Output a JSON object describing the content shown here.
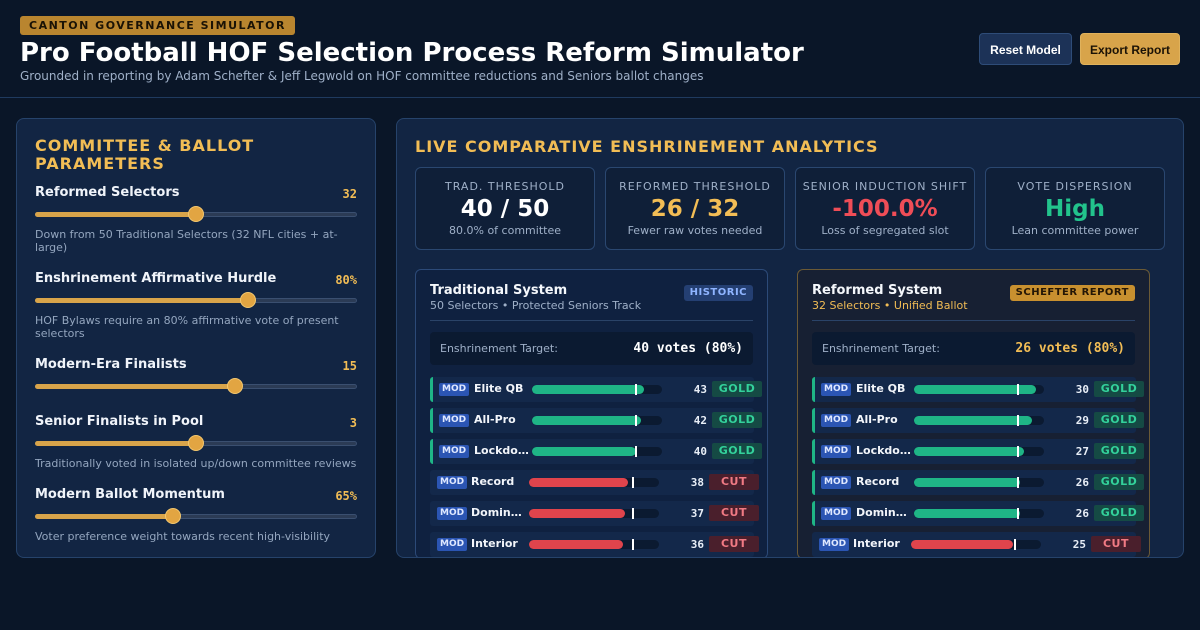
{
  "header": {
    "eyebrow": "CANTON GOVERNANCE SIMULATOR",
    "title": "Pro Football HOF Selection Process Reform Simulator",
    "subtitle": "Grounded in reporting by Adam Schefter & Jeff Legwold on HOF committee reductions and Seniors ballot changes",
    "reset_label": "Reset Model",
    "export_label": "Export Report"
  },
  "params": {
    "title": "COMMITTEE & BALLOT PARAMETERS",
    "items": [
      {
        "label": "Reformed Selectors",
        "value": "32",
        "level": 0.5,
        "note": "Down from 50 Traditional Selectors (32 NFL cities + at-large)"
      },
      {
        "label": "Enshrinement Affirmative Hurdle",
        "value": "80%",
        "level": 0.66,
        "note": "HOF Bylaws require an 80% affirmative vote of present selectors"
      },
      {
        "label": "Modern-Era Finalists",
        "value": "15",
        "level": 0.62,
        "note": ""
      },
      {
        "label": "Senior Finalists in Pool",
        "value": "3",
        "level": 0.5,
        "note": "Traditionally voted in isolated up/down committee reviews"
      },
      {
        "label": "Modern Ballot Momentum",
        "value": "65%",
        "level": 0.43,
        "note": "Voter preference weight towards recent high-visibility"
      }
    ]
  },
  "analytics": {
    "title": "LIVE COMPARATIVE ENSHRINEMENT ANALYTICS",
    "stats": [
      {
        "label": "TRAD. THRESHOLD",
        "value": "40 / 50",
        "sub": "80.0% of committee",
        "color": "#ffffff"
      },
      {
        "label": "REFORMED THRESHOLD",
        "value": "26 / 32",
        "sub": "Fewer raw votes needed",
        "color": "#f2bd55"
      },
      {
        "label": "SENIOR INDUCTION SHIFT",
        "value": "-100.0%",
        "sub": "Loss of segregated slot",
        "color": "#ef4d57"
      },
      {
        "label": "VOTE DISPERSION",
        "value": "High",
        "sub": "Lean committee power",
        "color": "#22c38c"
      }
    ]
  },
  "traditional": {
    "title": "Traditional System",
    "sub": "50 Selectors • Protected Seniors Track",
    "badge": "HISTORIC",
    "target_label": "Enshrinement Target:",
    "target_value": "40 votes (80%)",
    "max_votes": 50,
    "rows": [
      {
        "tag": "MOD",
        "name": "Elite QB",
        "votes": 43,
        "status": "GOLD"
      },
      {
        "tag": "MOD",
        "name": "All-Pro",
        "votes": 42,
        "status": "GOLD"
      },
      {
        "tag": "MOD",
        "name": "Lockdown",
        "votes": 40,
        "status": "GOLD"
      },
      {
        "tag": "MOD",
        "name": "Record",
        "votes": 38,
        "status": "CUT"
      },
      {
        "tag": "MOD",
        "name": "Dominant",
        "votes": 37,
        "status": "CUT"
      },
      {
        "tag": "MOD",
        "name": "Interior",
        "votes": 36,
        "status": "CUT"
      }
    ]
  },
  "reformed": {
    "title": "Reformed System",
    "sub": "32 Selectors • Unified Ballot",
    "badge": "SCHEFTER REPORT",
    "target_label": "Enshrinement Target:",
    "target_value": "26 votes (80%)",
    "max_votes": 32,
    "rows": [
      {
        "tag": "MOD",
        "name": "Elite QB",
        "votes": 30,
        "status": "GOLD"
      },
      {
        "tag": "MOD",
        "name": "All-Pro",
        "votes": 29,
        "status": "GOLD"
      },
      {
        "tag": "MOD",
        "name": "Lockdown",
        "votes": 27,
        "status": "GOLD"
      },
      {
        "tag": "MOD",
        "name": "Record",
        "votes": 26,
        "status": "GOLD"
      },
      {
        "tag": "MOD",
        "name": "Dominant",
        "votes": 26,
        "status": "GOLD"
      },
      {
        "tag": "MOD",
        "name": "Interior",
        "votes": 25,
        "status": "CUT"
      }
    ]
  },
  "colors": {
    "gold_bar": "#1fb586",
    "cut_bar": "#e0444c",
    "accent": "#f2bd55"
  }
}
